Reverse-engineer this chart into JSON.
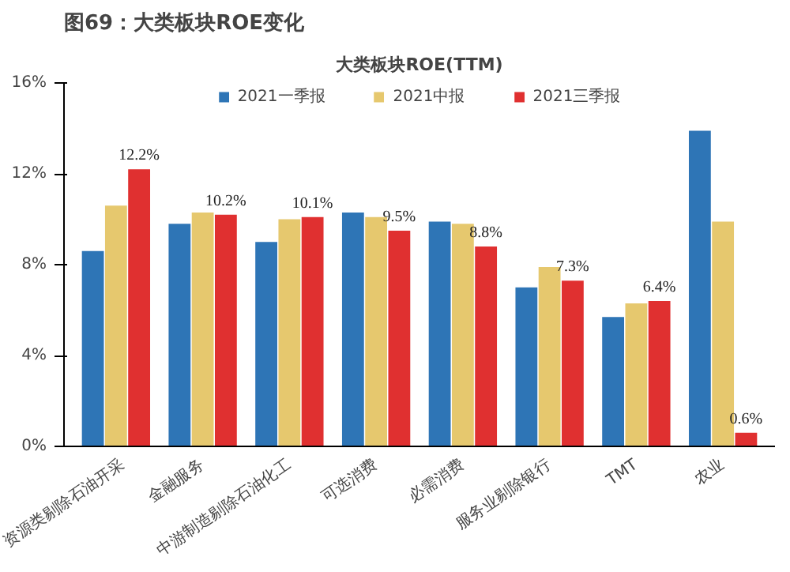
{
  "chart_data": {
    "type": "bar",
    "title": "图69：大类板块ROE变化",
    "subtitle": "大类板块ROE(TTM)",
    "categories": [
      "资源类剔除石油开采",
      "金融服务",
      "中游制造剔除石油化工",
      "可选消费",
      "必需消费",
      "服务业剔除银行",
      "TMT",
      "农业"
    ],
    "series": [
      {
        "name": "2021一季报",
        "color": "#2e75b6",
        "values": [
          8.6,
          9.8,
          9.0,
          10.3,
          9.9,
          7.0,
          5.7,
          13.9
        ]
      },
      {
        "name": "2021中报",
        "color": "#e6c86e",
        "values": [
          10.6,
          10.3,
          10.0,
          10.1,
          9.8,
          7.9,
          6.3,
          9.9
        ]
      },
      {
        "name": "2021三季报",
        "color": "#e03030",
        "values": [
          12.2,
          10.2,
          10.1,
          9.5,
          8.8,
          7.3,
          6.4,
          0.6
        ],
        "value_labels": [
          "12.2%",
          "10.2%",
          "10.1%",
          "9.5%",
          "8.8%",
          "7.3%",
          "6.4%",
          "0.6%"
        ]
      }
    ],
    "ylim": [
      0,
      16
    ],
    "yticks": [
      {
        "value": 0,
        "label": "0%"
      },
      {
        "value": 4,
        "label": "4%"
      },
      {
        "value": 8,
        "label": "8%"
      },
      {
        "value": 12,
        "label": "12%"
      },
      {
        "value": 16,
        "label": "16%"
      }
    ],
    "grid": false,
    "legend": "top"
  }
}
